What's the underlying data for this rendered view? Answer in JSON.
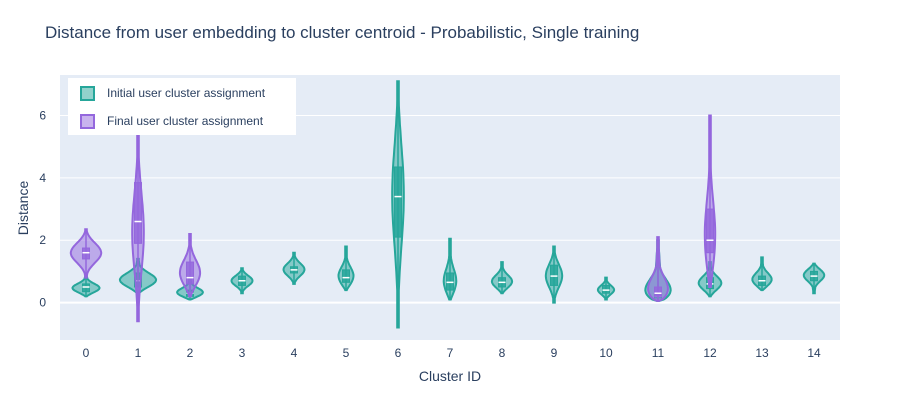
{
  "chart_data": {
    "type": "violin",
    "title": "Distance from user embedding to cluster centroid - Probabilistic, Single training",
    "xlabel": "Cluster ID",
    "ylabel": "Distance",
    "categories": [
      "0",
      "1",
      "2",
      "3",
      "4",
      "5",
      "6",
      "7",
      "8",
      "9",
      "10",
      "11",
      "12",
      "13",
      "14"
    ],
    "ylim": [
      -1.2,
      7.3
    ],
    "yticks": [
      0,
      2,
      4,
      6
    ],
    "grid": true,
    "legend_position": "top-left",
    "colors": {
      "initial": "#26a69a",
      "final": "#9467dd",
      "plot_bg": "#e5ecf6"
    },
    "series": [
      {
        "name": "Initial user cluster assignment",
        "color": "#26a69a",
        "violins": [
          {
            "cat": "0",
            "min": 0.2,
            "q1": 0.35,
            "median": 0.5,
            "q3": 0.6,
            "max": 0.9,
            "peak": 0.45,
            "hw": 0.6
          },
          {
            "cat": "1",
            "min": 0.3,
            "q1": 0.5,
            "median": 0.7,
            "q3": 0.95,
            "max": 1.4,
            "peak": 0.7,
            "hw": 0.8
          },
          {
            "cat": "2",
            "min": 0.1,
            "q1": 0.2,
            "median": 0.3,
            "q3": 0.4,
            "max": 0.8,
            "peak": 0.3,
            "hw": 0.6
          },
          {
            "cat": "3",
            "min": 0.3,
            "q1": 0.55,
            "median": 0.7,
            "q3": 0.85,
            "max": 1.1,
            "peak": 0.7,
            "hw": 0.45
          },
          {
            "cat": "4",
            "min": 0.6,
            "q1": 0.95,
            "median": 1.05,
            "q3": 1.15,
            "max": 1.6,
            "peak": 1.05,
            "hw": 0.45
          },
          {
            "cat": "5",
            "min": 0.4,
            "q1": 0.65,
            "median": 0.8,
            "q3": 1.05,
            "max": 1.8,
            "peak": 0.8,
            "hw": 0.35
          },
          {
            "cat": "6",
            "min": -0.8,
            "q1": 2.1,
            "median": 3.4,
            "q3": 4.35,
            "max": 7.1,
            "peak": 3.5,
            "hw": 0.25
          },
          {
            "cat": "7",
            "min": 0.1,
            "q1": 0.4,
            "median": 0.65,
            "q3": 0.95,
            "max": 2.05,
            "peak": 0.6,
            "hw": 0.3
          },
          {
            "cat": "8",
            "min": 0.3,
            "q1": 0.5,
            "median": 0.65,
            "q3": 0.8,
            "max": 1.3,
            "peak": 0.65,
            "hw": 0.45
          },
          {
            "cat": "9",
            "min": 0.0,
            "q1": 0.55,
            "median": 0.85,
            "q3": 1.2,
            "max": 1.8,
            "peak": 0.85,
            "hw": 0.35
          },
          {
            "cat": "10",
            "min": 0.1,
            "q1": 0.3,
            "median": 0.4,
            "q3": 0.55,
            "max": 0.8,
            "peak": 0.4,
            "hw": 0.35
          },
          {
            "cat": "11",
            "min": 0.05,
            "q1": 0.15,
            "median": 0.2,
            "q3": 0.3,
            "max": 2.0,
            "peak": 0.2,
            "hw": 0.8
          },
          {
            "cat": "12",
            "min": 0.2,
            "q1": 0.45,
            "median": 0.6,
            "q3": 0.8,
            "max": 1.3,
            "peak": 0.6,
            "hw": 0.5
          },
          {
            "cat": "13",
            "min": 0.4,
            "q1": 0.55,
            "median": 0.7,
            "q3": 0.85,
            "max": 1.45,
            "peak": 0.7,
            "hw": 0.45
          },
          {
            "cat": "14",
            "min": 0.3,
            "q1": 0.7,
            "median": 0.85,
            "q3": 1.0,
            "max": 1.25,
            "peak": 0.9,
            "hw": 0.45
          }
        ]
      },
      {
        "name": "Final user cluster assignment",
        "color": "#9467dd",
        "violins": [
          {
            "cat": "0",
            "min": 0.8,
            "q1": 1.4,
            "median": 1.6,
            "q3": 1.75,
            "max": 2.35,
            "peak": 1.6,
            "hw": 0.65
          },
          {
            "cat": "1",
            "min": -0.6,
            "q1": 1.9,
            "median": 2.6,
            "q3": 3.85,
            "max": 5.6,
            "peak": 2.2,
            "hw": 0.25
          },
          {
            "cat": "2",
            "min": 0.2,
            "q1": 0.6,
            "median": 0.8,
            "q3": 1.3,
            "max": 2.2,
            "peak": 0.9,
            "hw": 0.45
          },
          {
            "cat": "11",
            "min": 0.05,
            "q1": 0.2,
            "median": 0.3,
            "q3": 0.5,
            "max": 2.1,
            "peak": 0.25,
            "hw": 0.6
          },
          {
            "cat": "12",
            "min": 0.5,
            "q1": 1.6,
            "median": 2.0,
            "q3": 3.0,
            "max": 6.0,
            "peak": 1.9,
            "hw": 0.25
          }
        ]
      }
    ]
  }
}
